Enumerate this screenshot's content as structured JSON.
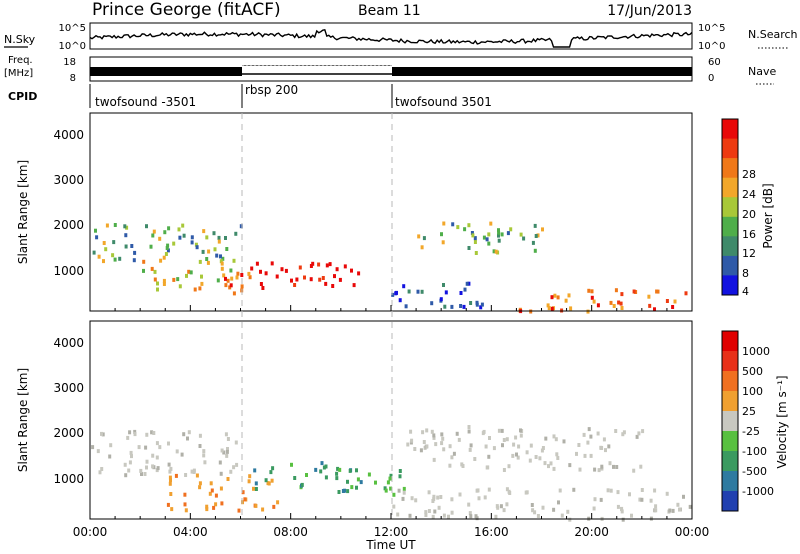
{
  "header": {
    "station": "Prince George (fitACF)",
    "beam": "Beam 11",
    "date": "17/Jun/2013"
  },
  "top_panels": {
    "nsky_label": "N.Sky",
    "nsky_ticks": [
      "10^5",
      "10^0"
    ],
    "nsearch_label": "N.Search",
    "nsearch_ticks": [
      "10^5",
      "10^0"
    ],
    "freq_label": "Freq.",
    "freq_unit": "[MHz]",
    "freq_ticks": [
      "18",
      "8"
    ],
    "nave_label": "Nave",
    "nave_ticks": [
      "60",
      "0"
    ],
    "cpid_label": "CPID",
    "cpid_segments": [
      {
        "name": "twofsound -3501",
        "start": 0,
        "end": 6
      },
      {
        "name": "rbsp 200",
        "start": 6,
        "end": 12
      },
      {
        "name": "twofsound 3501",
        "start": 12,
        "end": 24
      }
    ]
  },
  "chart_data": [
    {
      "type": "heatmap",
      "ylabel": "Slant Range [km]",
      "ylim": [
        180,
        4600
      ],
      "yticks": [
        "4000",
        "3000",
        "2000",
        "1000"
      ],
      "xlim": [
        0,
        24
      ],
      "colorbar": {
        "label": "Power [dB]",
        "ticks": [
          "28",
          "24",
          "20",
          "16",
          "12",
          "8",
          "4"
        ],
        "colors": [
          "#1212e0",
          "#2f5aa8",
          "#3f8a6a",
          "#4fae4a",
          "#a8c838",
          "#f2a72a",
          "#f07818",
          "#ee3a10",
          "#e80808"
        ]
      },
      "regions": [
        {
          "t": [
            0.0,
            6.2
          ],
          "r": [
            1300,
            2150
          ],
          "level": "mid"
        },
        {
          "t": [
            2.0,
            6.0
          ],
          "r": [
            700,
            1400
          ],
          "level": "mid-high"
        },
        {
          "t": [
            5.2,
            6.4
          ],
          "r": [
            400,
            1200
          ],
          "level": "high"
        },
        {
          "t": [
            6.5,
            10.8
          ],
          "r": [
            650,
            1300
          ],
          "level": "max"
        },
        {
          "t": [
            12.0,
            16.0
          ],
          "r": [
            300,
            900
          ],
          "level": "low"
        },
        {
          "t": [
            17.0,
            24.0
          ],
          "r": [
            200,
            700
          ],
          "level": "high"
        },
        {
          "t": [
            13.0,
            18.0
          ],
          "r": [
            1500,
            2200
          ],
          "level": "mid"
        }
      ]
    },
    {
      "type": "heatmap",
      "ylabel": "Slant Range [km]",
      "ylim": [
        180,
        4600
      ],
      "yticks": [
        "4000",
        "3000",
        "2000",
        "1000"
      ],
      "xlabel": "Time UT",
      "xticks": [
        "00:00",
        "04:00",
        "08:00",
        "12:00",
        "16:00",
        "20:00",
        "00:00"
      ],
      "xlim": [
        0,
        24
      ],
      "colorbar": {
        "label": "Velocity [m s⁻¹]",
        "ticks": [
          "1000",
          "500",
          "100",
          "25",
          "-25",
          "-100",
          "-500",
          "-1000"
        ],
        "colors": [
          "#2040b0",
          "#2e7aa0",
          "#3a9a60",
          "#58c040",
          "#c8c8c0",
          "#f0a030",
          "#f07020",
          "#e83018",
          "#e00000"
        ]
      },
      "regions": [
        {
          "t": [
            0.0,
            6.0
          ],
          "r": [
            1200,
            2200
          ],
          "level": "ground"
        },
        {
          "t": [
            3.0,
            7.5
          ],
          "r": [
            400,
            1200
          ],
          "level": "away"
        },
        {
          "t": [
            6.5,
            10.8
          ],
          "r": [
            800,
            1500
          ],
          "level": "toward"
        },
        {
          "t": [
            10.5,
            12.5
          ],
          "r": [
            700,
            1300
          ],
          "level": "toward-weak"
        },
        {
          "t": [
            12.0,
            24.0
          ],
          "r": [
            200,
            900
          ],
          "level": "ground"
        },
        {
          "t": [
            12.5,
            22.0
          ],
          "r": [
            1300,
            2300
          ],
          "level": "ground"
        }
      ]
    }
  ]
}
